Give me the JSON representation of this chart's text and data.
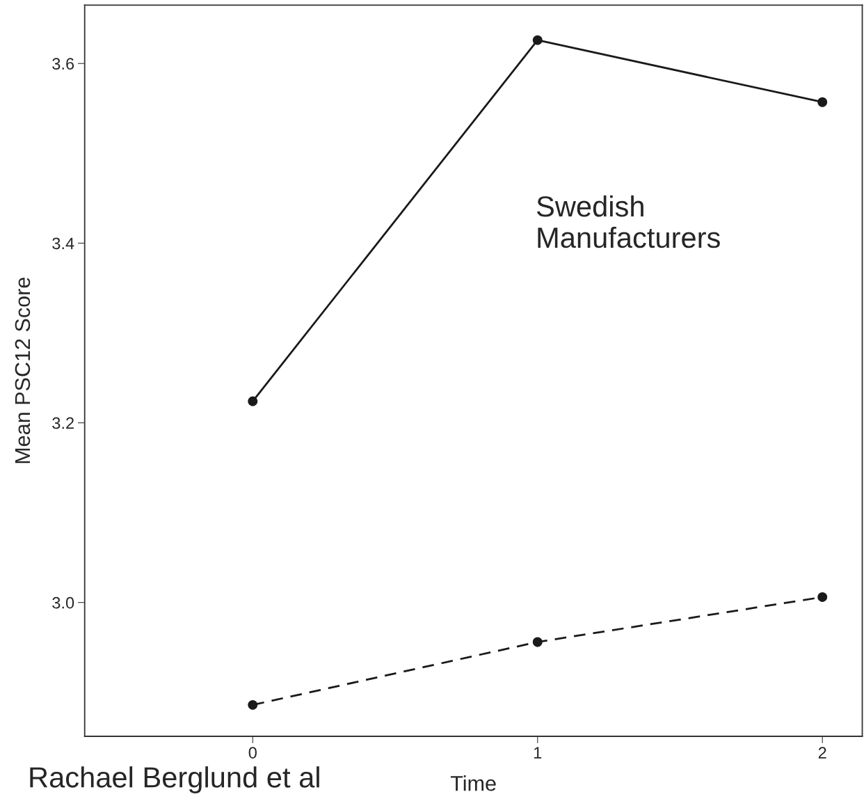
{
  "chart_data": {
    "type": "line",
    "xlabel": "Time",
    "ylabel": "Mean PSC12 Score",
    "x": [
      0,
      1,
      2
    ],
    "series": [
      {
        "color": "#1a1a1a",
        "values": [
          3.224,
          3.626,
          3.557
        ],
        "line_style": "solid"
      },
      {
        "color": "#1a1a1a",
        "values": [
          2.886,
          2.956,
          3.006
        ],
        "line_style": "dashed"
      }
    ],
    "marker": "circle",
    "xlim": [
      -0.59,
      2.14
    ],
    "xticks": [
      0,
      1,
      2
    ],
    "ylim": [
      2.851,
      3.665
    ],
    "yticks": [
      {
        "value": 3.0,
        "label": "3.0"
      },
      {
        "value": 3.2,
        "label": "3.2"
      },
      {
        "value": 3.4,
        "label": "3.4"
      },
      {
        "value": 3.6,
        "label": "3.6"
      }
    ],
    "grid": false,
    "annotations": [
      "Swedish\nManufacturers",
      "Rachael Berglund et al"
    ]
  }
}
